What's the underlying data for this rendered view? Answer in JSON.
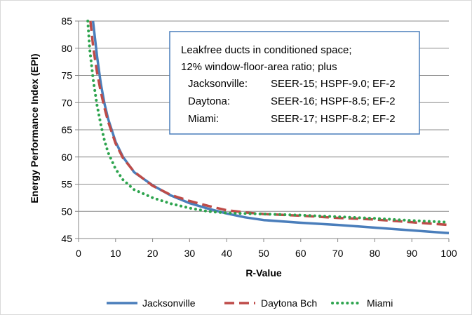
{
  "chart_data": {
    "type": "line",
    "xlabel": "R-Value",
    "ylabel": "Energy Performance Index (EPI)",
    "xlim": [
      0,
      100
    ],
    "ylim": [
      45,
      85
    ],
    "x_ticks": [
      0,
      10,
      20,
      30,
      40,
      50,
      60,
      70,
      80,
      90,
      100
    ],
    "y_ticks": [
      45,
      50,
      55,
      60,
      65,
      70,
      75,
      80,
      85
    ],
    "grid": "horizontal",
    "legend_position": "bottom",
    "annotation": {
      "lines": [
        "Leakfree ducts in conditioned space;",
        "12% window-floor-area ratio;  plus"
      ],
      "rows": [
        {
          "city": "Jacksonville:",
          "spec": "SEER-15; HSPF-9.0; EF-2"
        },
        {
          "city": "Daytona:",
          "spec": "SEER-16; HSPF-8.5; EF-2"
        },
        {
          "city": "Miami:",
          "spec": "SEER-17; HSPF-8.2; EF-2"
        }
      ]
    },
    "series": [
      {
        "name": "Jacksonville",
        "color": "#4a7ebb",
        "style": "solid",
        "points": [
          [
            3.9,
            85
          ],
          [
            5,
            78.5
          ],
          [
            6,
            73.5
          ],
          [
            7,
            69.8
          ],
          [
            8,
            67
          ],
          [
            10,
            62.8
          ],
          [
            12,
            60
          ],
          [
            15,
            57.2
          ],
          [
            20,
            54.8
          ],
          [
            25,
            52.9
          ],
          [
            30,
            51.5
          ],
          [
            35,
            50.5
          ],
          [
            40,
            49.6
          ],
          [
            45,
            48.9
          ],
          [
            50,
            48.4
          ],
          [
            60,
            47.9
          ],
          [
            70,
            47.5
          ],
          [
            80,
            47.0
          ],
          [
            90,
            46.5
          ],
          [
            100,
            46.0
          ]
        ]
      },
      {
        "name": "Daytona Bch",
        "color": "#be4b48",
        "style": "dashed",
        "points": [
          [
            3.2,
            85
          ],
          [
            4,
            80
          ],
          [
            5,
            75.5
          ],
          [
            6,
            72
          ],
          [
            7,
            69
          ],
          [
            8,
            66.5
          ],
          [
            10,
            62.5
          ],
          [
            12,
            59.8
          ],
          [
            15,
            57.3
          ],
          [
            20,
            54.7
          ],
          [
            25,
            53
          ],
          [
            30,
            51.9
          ],
          [
            35,
            51
          ],
          [
            40,
            50.2
          ],
          [
            45,
            49.8
          ],
          [
            50,
            49.5
          ],
          [
            60,
            49.2
          ],
          [
            70,
            48.8
          ],
          [
            80,
            48.5
          ],
          [
            90,
            48.0
          ],
          [
            100,
            47.5
          ]
        ]
      },
      {
        "name": "Miami",
        "color": "#2da44e",
        "style": "dotted",
        "points": [
          [
            2.5,
            85
          ],
          [
            3,
            80
          ],
          [
            4,
            74
          ],
          [
            5,
            69.5
          ],
          [
            6,
            66
          ],
          [
            7,
            63
          ],
          [
            8,
            60.8
          ],
          [
            10,
            57.8
          ],
          [
            12,
            55.8
          ],
          [
            15,
            54.0
          ],
          [
            20,
            52.5
          ],
          [
            25,
            51.4
          ],
          [
            30,
            50.6
          ],
          [
            35,
            50
          ],
          [
            40,
            49.7
          ],
          [
            50,
            49.5
          ],
          [
            60,
            49.3
          ],
          [
            70,
            49.0
          ],
          [
            80,
            48.7
          ],
          [
            90,
            48.3
          ],
          [
            100,
            48.0
          ]
        ]
      }
    ]
  }
}
